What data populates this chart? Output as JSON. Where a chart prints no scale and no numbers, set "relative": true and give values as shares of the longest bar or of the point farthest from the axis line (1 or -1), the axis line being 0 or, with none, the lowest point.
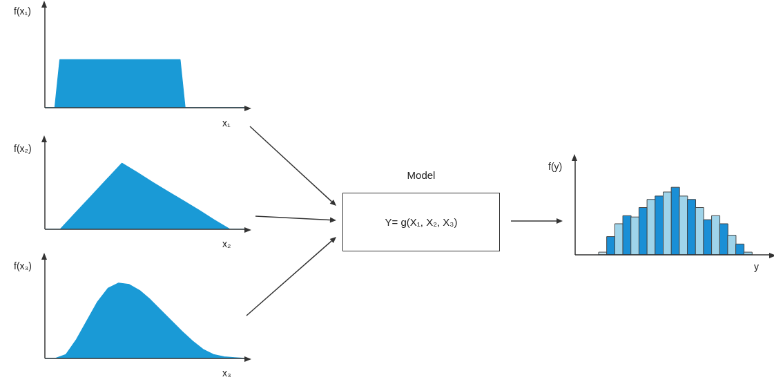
{
  "chart_data": [
    {
      "type": "area",
      "ylabel": "f(x₁)",
      "xlabel": "x₁",
      "relative": true,
      "color": "#1a9ad6",
      "categories": [
        null,
        null,
        null,
        null,
        null,
        null,
        null,
        null,
        null,
        null,
        null,
        null,
        null,
        null,
        null,
        null,
        null,
        null,
        null,
        null,
        null,
        null,
        null,
        null,
        null,
        null,
        null,
        null,
        null,
        null,
        null,
        null,
        null,
        null,
        null,
        null,
        null,
        null,
        null,
        null,
        null
      ],
      "values": [
        0,
        0,
        0,
        1,
        1,
        1,
        1,
        1,
        1,
        1,
        1,
        1,
        1,
        1,
        1,
        1,
        1,
        1,
        1,
        1,
        1,
        1,
        1,
        1,
        1,
        1,
        1,
        1,
        0,
        0,
        0,
        0,
        0,
        0,
        0,
        0,
        0,
        0,
        0,
        0,
        0
      ]
    },
    {
      "type": "area",
      "ylabel": "f(x₂)",
      "xlabel": "x₂",
      "relative": true,
      "color": "#1a9ad6",
      "categories": [
        null,
        null,
        null,
        null,
        null,
        null,
        null,
        null,
        null,
        null,
        null,
        null,
        null,
        null
      ],
      "values": [
        0,
        0,
        0.25,
        0.5,
        0.75,
        1,
        0.86,
        0.71,
        0.57,
        0.43,
        0.29,
        0.14,
        0,
        0
      ]
    },
    {
      "type": "area",
      "ylabel": "f(x₃)",
      "xlabel": "x₃",
      "relative": true,
      "color": "#1a9ad6",
      "categories": [
        null,
        null,
        null,
        null,
        null,
        null,
        null,
        null,
        null,
        null,
        null,
        null,
        null,
        null,
        null,
        null,
        null,
        null,
        null,
        null
      ],
      "values": [
        0,
        0,
        0.05,
        0.25,
        0.5,
        0.75,
        0.93,
        1,
        0.98,
        0.9,
        0.78,
        0.64,
        0.5,
        0.36,
        0.23,
        0.12,
        0.05,
        0.02,
        0.01,
        0
      ]
    },
    {
      "type": "other",
      "title": "Model",
      "annotations": [
        "Y= g(X₁, X₂, X₃)"
      ]
    },
    {
      "type": "bar",
      "ylabel": "f(y)",
      "xlabel": "y",
      "relative": true,
      "categories": [
        null,
        null,
        null,
        null,
        null,
        null,
        null,
        null,
        null,
        null,
        null,
        null,
        null,
        null,
        null,
        null,
        null,
        null,
        null
      ],
      "values": [
        0.04,
        0.27,
        0.46,
        0.58,
        0.56,
        0.7,
        0.82,
        0.87,
        0.93,
        1,
        0.87,
        0.82,
        0.7,
        0.52,
        0.58,
        0.46,
        0.29,
        0.16,
        0.04
      ],
      "colors": [
        "#cfe8f2",
        "#1a8fd6",
        "#9fd4ea",
        "#1a8fd6",
        "#9fd4ea",
        "#1a8fd6",
        "#9fd4ea",
        "#1a8fd6",
        "#9fd4ea",
        "#1a8fd6",
        "#9fd4ea",
        "#1a8fd6",
        "#9fd4ea",
        "#1a8fd6",
        "#9fd4ea",
        "#1a8fd6",
        "#9fd4ea",
        "#1a8fd6",
        "#9fd4ea"
      ]
    }
  ]
}
